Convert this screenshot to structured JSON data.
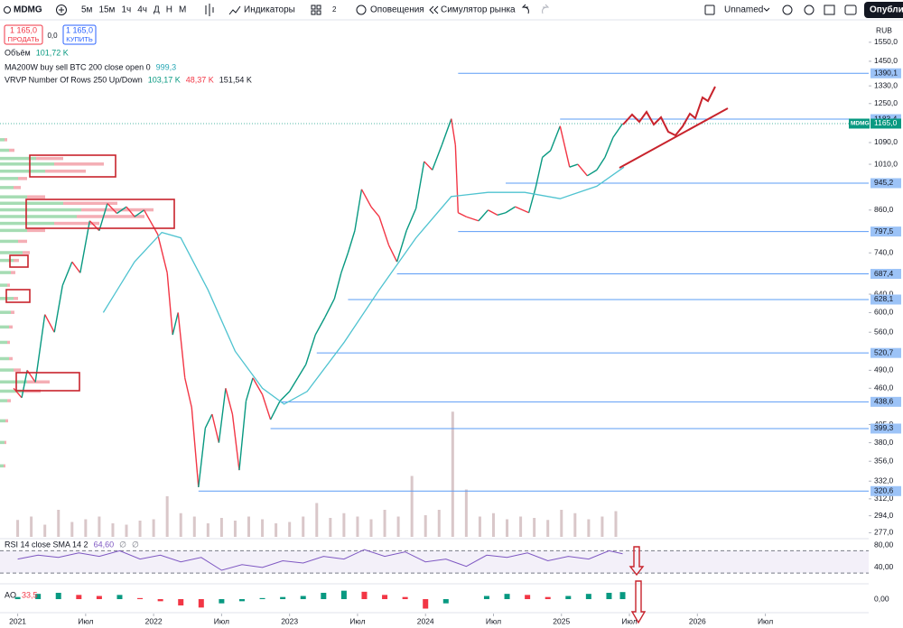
{
  "toolbar": {
    "symbol": "MDMG",
    "intervals": [
      "5м",
      "15м",
      "1ч",
      "4ч",
      "Д",
      "Н",
      "М"
    ],
    "indicators": "Индикаторы",
    "templates_count": "2",
    "alerts": "Оповещения",
    "replay": "Симулятор рынка",
    "layout_name": "Unnamed",
    "publish": "Опубликов"
  },
  "chart_data": [
    {
      "type": "line",
      "log_scale": true,
      "grid": false,
      "currency": "RUB",
      "trade": {
        "sell_price": {
          "value": 1165,
          "label": "1 165,0"
        },
        "sell": "ПРОДАТЬ",
        "spread": {
          "value": 0,
          "label": "0,0"
        },
        "buy_price": {
          "value": 1165,
          "label": "1 165,0"
        },
        "buy": "КУПИТЬ"
      },
      "legend": {
        "volume": {
          "label": "Объём",
          "value": {
            "value": 101.72,
            "label": "101,72 K"
          }
        },
        "ma": {
          "label": "MA200W buy sell BTC 200 close open 0",
          "value": {
            "value": 999.3,
            "label": "999,3"
          }
        },
        "vrvp": {
          "label": "VRVP Number Of Rows 250 Up/Down",
          "up": {
            "value": 103.17,
            "label": "103,17 K"
          },
          "down": {
            "value": 48.37,
            "label": "48,37 K"
          },
          "total": {
            "value": 151.54,
            "label": "151,54 K"
          }
        }
      },
      "xlim": [
        2020.87,
        2027.26
      ],
      "xticks": [
        2021,
        {
          "value": 2021.5,
          "label": "Июл"
        },
        2022,
        {
          "value": 2022.5,
          "label": "Июл"
        },
        2023,
        {
          "value": 2023.5,
          "label": "Июл"
        },
        2024,
        {
          "value": 2024.5,
          "label": "Июл"
        },
        2025,
        {
          "value": 2025.5,
          "label": "Июл"
        },
        2026,
        {
          "value": 2026.5,
          "label": "Июл"
        }
      ],
      "ylim": [
        273,
        1677
      ],
      "yticks": [
        {
          "value": 1550,
          "label": "1550,0"
        },
        {
          "value": 1450,
          "label": "1450,0"
        },
        {
          "value": 1330,
          "label": "1330,0"
        },
        {
          "value": 1250,
          "label": "1250,0"
        },
        {
          "value": 1090,
          "label": "1090,0"
        },
        {
          "value": 1010,
          "label": "1010,0"
        },
        {
          "value": 860,
          "label": "860,0"
        },
        {
          "value": 740,
          "label": "740,0"
        },
        {
          "value": 640,
          "label": "640,0"
        },
        {
          "value": 600,
          "label": "600,0"
        },
        {
          "value": 560,
          "label": "560,0"
        },
        {
          "value": 490,
          "label": "490,0"
        },
        {
          "value": 460,
          "label": "460,0"
        },
        {
          "value": 405,
          "label": "405,0"
        },
        {
          "value": 380,
          "label": "380,0"
        },
        {
          "value": 356,
          "label": "356,0"
        },
        {
          "value": 332,
          "label": "332,0"
        },
        {
          "value": 312,
          "label": "312,0"
        },
        {
          "value": 294,
          "label": "294,0"
        },
        {
          "value": 277,
          "label": "277,0"
        }
      ],
      "levels": [
        {
          "value": 1390.1,
          "label": "1390,1",
          "from": 2024.24
        },
        {
          "value": 1183.4,
          "label": "1183,4",
          "from": 2024.99
        },
        {
          "value": 945.2,
          "label": "945,2",
          "from": 2024.59
        },
        {
          "value": 797.5,
          "label": "797,5",
          "from": 2024.24
        },
        {
          "value": 687.4,
          "label": "687,4",
          "from": 2023.79
        },
        {
          "value": 628.1,
          "label": "628,1",
          "from": 2023.43
        },
        {
          "value": 520.7,
          "label": "520,7",
          "from": 2023.2
        },
        {
          "value": 438.6,
          "label": "438,6",
          "from": 2022.93
        },
        {
          "value": 399.3,
          "label": "399,3",
          "from": 2022.86
        },
        {
          "value": 320.6,
          "label": "320,6",
          "from": 2022.33
        }
      ],
      "level_color": "#5b9cf6",
      "last_price": {
        "symbol": "MDMG",
        "price": {
          "value": 1165,
          "label": "1165,0"
        },
        "color": "#089981"
      },
      "series": [
        {
          "name": "MDMG",
          "color": "#089981",
          "down_color": "#f23645",
          "x": [
            2020.97,
            2021.03,
            2021.07,
            2021.13,
            2021.2,
            2021.27,
            2021.33,
            2021.4,
            2021.46,
            2021.53,
            2021.6,
            2021.66,
            2021.73,
            2021.8,
            2021.86,
            2021.93,
            2022.03,
            2022.1,
            2022.14,
            2022.18,
            2022.23,
            2022.28,
            2022.33,
            2022.38,
            2022.43,
            2022.48,
            2022.53,
            2022.58,
            2022.63,
            2022.68,
            2022.73,
            2022.8,
            2022.86,
            2022.93,
            2023.0,
            2023.06,
            2023.12,
            2023.19,
            2023.26,
            2023.33,
            2023.38,
            2023.43,
            2023.48,
            2023.53,
            2023.6,
            2023.66,
            2023.73,
            2023.79,
            2023.86,
            2023.93,
            2023.99,
            2024.05,
            2024.12,
            2024.19,
            2024.22,
            2024.24,
            2024.3,
            2024.39,
            2024.46,
            2024.53,
            2024.59,
            2024.66,
            2024.76,
            2024.81,
            2024.86,
            2024.92,
            2024.99,
            2025.06,
            2025.12,
            2025.19,
            2025.26,
            2025.32,
            2025.38,
            2025.45
          ],
          "values": [
            460,
            445,
            490,
            470,
            596,
            560,
            660,
            717,
            690,
            828,
            800,
            880,
            850,
            870,
            840,
            860,
            790,
            690,
            555,
            600,
            477,
            430,
            325,
            400,
            420,
            380,
            460,
            420,
            345,
            440,
            477,
            450,
            412,
            440,
            455,
            477,
            500,
            555,
            590,
            630,
            690,
            740,
            800,
            925,
            870,
            840,
            760,
            717,
            800,
            865,
            1020,
            990,
            1080,
            1185,
            1080,
            852,
            840,
            828,
            860,
            845,
            852,
            870,
            852,
            930,
            1035,
            1060,
            1155,
            1000,
            1010,
            970,
            990,
            1035,
            1110,
            1165
          ]
        },
        {
          "color": "#4fc3d0",
          "x": [
            2021.63,
            2021.86,
            2022.06,
            2022.2,
            2022.4,
            2022.6,
            2022.8,
            2022.96,
            2023.13,
            2023.4,
            2023.66,
            2023.93,
            2024.19,
            2024.46,
            2024.73,
            2024.99,
            2025.26,
            2025.46
          ],
          "values": [
            600,
            717,
            795,
            780,
            650,
            524,
            460,
            435,
            455,
            540,
            650,
            780,
            902,
            915,
            915,
            895,
            935,
            1000
          ]
        }
      ],
      "volume": {
        "color": "#d9c7c9",
        "ylim": [
          0,
          2000
        ],
        "x": [
          2021.0,
          2021.1,
          2021.2,
          2021.3,
          2021.4,
          2021.5,
          2021.6,
          2021.7,
          2021.8,
          2021.9,
          2022.0,
          2022.1,
          2022.2,
          2022.3,
          2022.4,
          2022.5,
          2022.6,
          2022.7,
          2022.8,
          2022.9,
          2023.0,
          2023.1,
          2023.2,
          2023.3,
          2023.4,
          2023.5,
          2023.6,
          2023.7,
          2023.8,
          2023.9,
          2024.0,
          2024.1,
          2024.2,
          2024.3,
          2024.4,
          2024.5,
          2024.6,
          2024.7,
          2024.8,
          2024.9,
          2025.0,
          2025.1,
          2025.2,
          2025.3,
          2025.4
        ],
        "values": [
          250,
          300,
          180,
          400,
          220,
          260,
          300,
          200,
          180,
          240,
          260,
          600,
          350,
          300,
          200,
          280,
          240,
          300,
          260,
          200,
          220,
          300,
          500,
          280,
          350,
          300,
          260,
          400,
          300,
          900,
          320,
          400,
          1850,
          700,
          300,
          350,
          260,
          300,
          280,
          250,
          400,
          350,
          260,
          300,
          380
        ]
      },
      "profile": {
        "up_color": "#8fd3a0",
        "down_color": "#f19aa3",
        "xlim": [
          0,
          200
        ],
        "prices": [
          1100,
          1060,
          1030,
          1010,
          985,
          960,
          930,
          900,
          880,
          860,
          840,
          820,
          800,
          770,
          740,
          720,
          690,
          660,
          630,
          600,
          570,
          540,
          510,
          490,
          470,
          455,
          440,
          410,
          380,
          350
        ],
        "up": [
          5,
          10,
          40,
          60,
          50,
          20,
          15,
          30,
          70,
          90,
          85,
          60,
          30,
          20,
          25,
          15,
          12,
          8,
          15,
          12,
          10,
          8,
          10,
          15,
          30,
          25,
          8,
          6,
          5,
          4
        ],
        "down": [
          3,
          6,
          30,
          55,
          45,
          10,
          8,
          20,
          60,
          80,
          75,
          50,
          20,
          10,
          8,
          6,
          5,
          3,
          5,
          4,
          4,
          3,
          4,
          8,
          25,
          20,
          4,
          3,
          2,
          2
        ]
      }
    },
    {
      "type": "line",
      "label": "RSI 14 close SMA 14 2",
      "value": {
        "value": 64.6,
        "label": "64,60"
      },
      "na_labels": [
        "∅",
        "∅"
      ],
      "color": "#7e57c2",
      "band": [
        30,
        70
      ],
      "ylim": [
        14,
        90
      ],
      "yticks": [
        {
          "value": 80,
          "label": "80,00"
        },
        {
          "value": 40,
          "label": "40,00"
        }
      ],
      "x": [
        2021.0,
        2021.15,
        2021.3,
        2021.45,
        2021.6,
        2021.75,
        2021.9,
        2022.05,
        2022.2,
        2022.35,
        2022.5,
        2022.65,
        2022.8,
        2022.95,
        2023.1,
        2023.25,
        2023.4,
        2023.55,
        2023.7,
        2023.85,
        2024.0,
        2024.15,
        2024.3,
        2024.45,
        2024.6,
        2024.75,
        2024.9,
        2025.05,
        2025.2,
        2025.35,
        2025.45
      ],
      "values": [
        55,
        62,
        58,
        66,
        60,
        70,
        55,
        62,
        50,
        58,
        35,
        45,
        40,
        52,
        48,
        60,
        55,
        72,
        60,
        68,
        50,
        55,
        42,
        62,
        58,
        66,
        52,
        60,
        55,
        70,
        64.6
      ]
    },
    {
      "type": "bar",
      "label": "AO",
      "value": {
        "value": 33.5,
        "label": "33,5"
      },
      "color": "#089981",
      "down_color": "#f23645",
      "ylim": [
        -60,
        60
      ],
      "yticks": [
        {
          "value": 0,
          "label": "0,00"
        }
      ],
      "x": [
        2021.0,
        2021.15,
        2021.3,
        2021.45,
        2021.6,
        2021.75,
        2021.9,
        2022.05,
        2022.2,
        2022.35,
        2022.5,
        2022.65,
        2022.8,
        2022.95,
        2023.1,
        2023.25,
        2023.4,
        2023.55,
        2023.7,
        2023.85,
        2024.0,
        2024.15,
        2024.3,
        2024.45,
        2024.6,
        2024.75,
        2024.9,
        2025.05,
        2025.2,
        2025.35,
        2025.45
      ],
      "values": [
        10,
        25,
        30,
        20,
        15,
        20,
        5,
        -10,
        -30,
        -40,
        -20,
        -10,
        5,
        10,
        15,
        30,
        40,
        35,
        20,
        10,
        -45,
        -20,
        0,
        15,
        25,
        20,
        10,
        15,
        25,
        30,
        33.5
      ]
    }
  ]
}
